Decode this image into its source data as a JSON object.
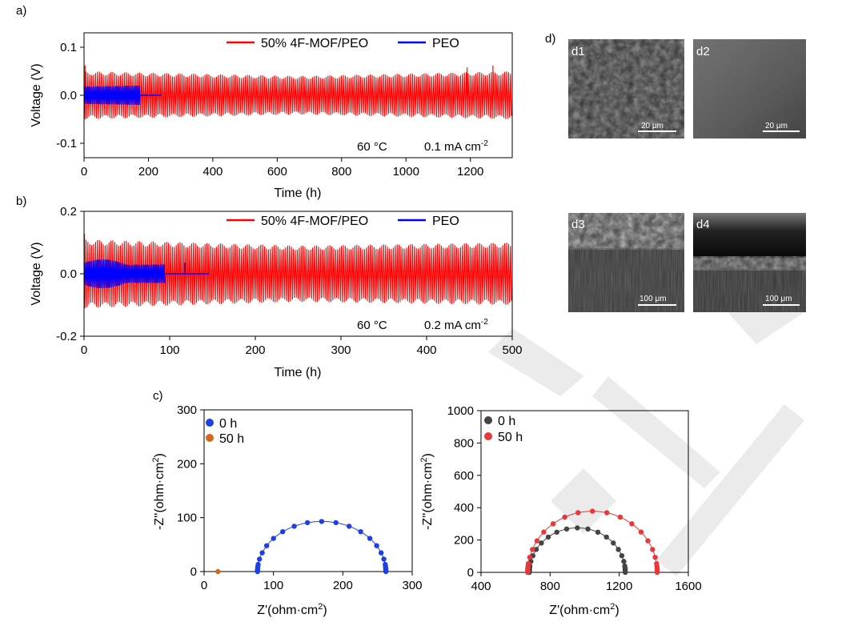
{
  "panel_labels": {
    "a": "a)",
    "b": "b)",
    "c": "c)",
    "d": "d)"
  },
  "colors": {
    "red": "#ff0000",
    "blue": "#0000ff",
    "eis_blue": "#1f3fe6",
    "eis_orange": "#d2691e",
    "eis_gray": "#444444",
    "eis_red": "#e8383b"
  },
  "chart_data": [
    {
      "id": "a",
      "type": "line",
      "xlabel": "Time (h)",
      "ylabel": "Voltage (V)",
      "xlim": [
        0,
        1330
      ],
      "ylim": [
        -0.13,
        0.13
      ],
      "xticks": [
        0,
        200,
        400,
        600,
        800,
        1000,
        1200
      ],
      "yticks": [
        -0.1,
        0.0,
        0.1
      ],
      "ytick_labels": [
        "-0.1",
        "0.0",
        "0.1"
      ],
      "conditions": {
        "temperature": "60 °C",
        "current": "0.1 mA cm",
        "current_sup": "-2"
      },
      "series": [
        {
          "name": "50% 4F-MOF/PEO",
          "color": "#ff0000",
          "x_range": [
            0,
            1330
          ],
          "amplitude": [
            0.05,
            0.04,
            0.05
          ],
          "spikes": [
            [
              3,
              0.062
            ],
            [
              1190,
              0.058
            ],
            [
              1270,
              0.062
            ]
          ]
        },
        {
          "name": "PEO",
          "color": "#0000ff",
          "x_range": [
            0,
            240
          ],
          "polarization_end": 175,
          "amplitude": [
            0.018,
            0.02
          ]
        }
      ]
    },
    {
      "id": "b",
      "type": "line",
      "xlabel": "Time (h)",
      "ylabel": "Voltage (V)",
      "xlim": [
        0,
        500
      ],
      "ylim": [
        -0.2,
        0.2
      ],
      "xticks": [
        0,
        100,
        200,
        300,
        400,
        500
      ],
      "yticks": [
        -0.2,
        0.0,
        0.2
      ],
      "ytick_labels": [
        "-0.2",
        "0.0",
        "0.2"
      ],
      "conditions": {
        "temperature": "60 °C",
        "current": "0.2 mA cm",
        "current_sup": "-2"
      },
      "series": [
        {
          "name": "50% 4F-MOF/PEO",
          "color": "#ff0000",
          "x_range": [
            0,
            500
          ],
          "amplitude": [
            0.11,
            0.09,
            0.1
          ],
          "spikes": [
            [
              0.5,
              0.128
            ]
          ]
        },
        {
          "name": "PEO",
          "color": "#0000ff",
          "x_range": [
            0,
            146
          ],
          "polarization_end": 95,
          "amplitude": [
            0.045,
            0.05
          ]
        }
      ]
    },
    {
      "id": "c1",
      "type": "scatter",
      "xlabel": "Z'(ohm·cm",
      "xlabel_sup": "2",
      "xlabel_end": ")",
      "ylabel": "-Z''(ohm·cm",
      "ylabel_sup": "2",
      "ylabel_end": ")",
      "xlim": [
        0,
        300
      ],
      "ylim": [
        0,
        300
      ],
      "xticks": [
        0,
        100,
        200,
        300
      ],
      "yticks": [
        0,
        100,
        200,
        300
      ],
      "series": [
        {
          "name": "0 h",
          "color": "#1f3fe6",
          "arc": {
            "start": 77,
            "end": 262,
            "peak": 93
          }
        },
        {
          "name": "50 h",
          "color": "#d2691e",
          "points": [
            [
              20,
              0
            ]
          ]
        }
      ]
    },
    {
      "id": "c2",
      "type": "scatter",
      "xlabel": "Z'(ohm·cm",
      "xlabel_sup": "2",
      "xlabel_end": ")",
      "ylabel": "-Z''(ohm·cm",
      "ylabel_sup": "2",
      "ylabel_end": ")",
      "xlim": [
        400,
        1600
      ],
      "ylim": [
        0,
        1000
      ],
      "xticks": [
        400,
        800,
        1200,
        1600
      ],
      "yticks": [
        0,
        200,
        400,
        600,
        800,
        1000
      ],
      "series": [
        {
          "name": "0 h",
          "color": "#444444",
          "arc": {
            "start": 680,
            "end": 1235,
            "peak": 275
          }
        },
        {
          "name": "50 h",
          "color": "#e8383b",
          "arc": {
            "start": 670,
            "end": 1420,
            "peak": 378
          }
        }
      ]
    }
  ],
  "sem_images": [
    {
      "label": "d1",
      "scale": "20 μm"
    },
    {
      "label": "d2",
      "scale": "20 μm"
    },
    {
      "label": "d3",
      "scale": "100 μm"
    },
    {
      "label": "d4",
      "scale": "100 μm"
    }
  ]
}
